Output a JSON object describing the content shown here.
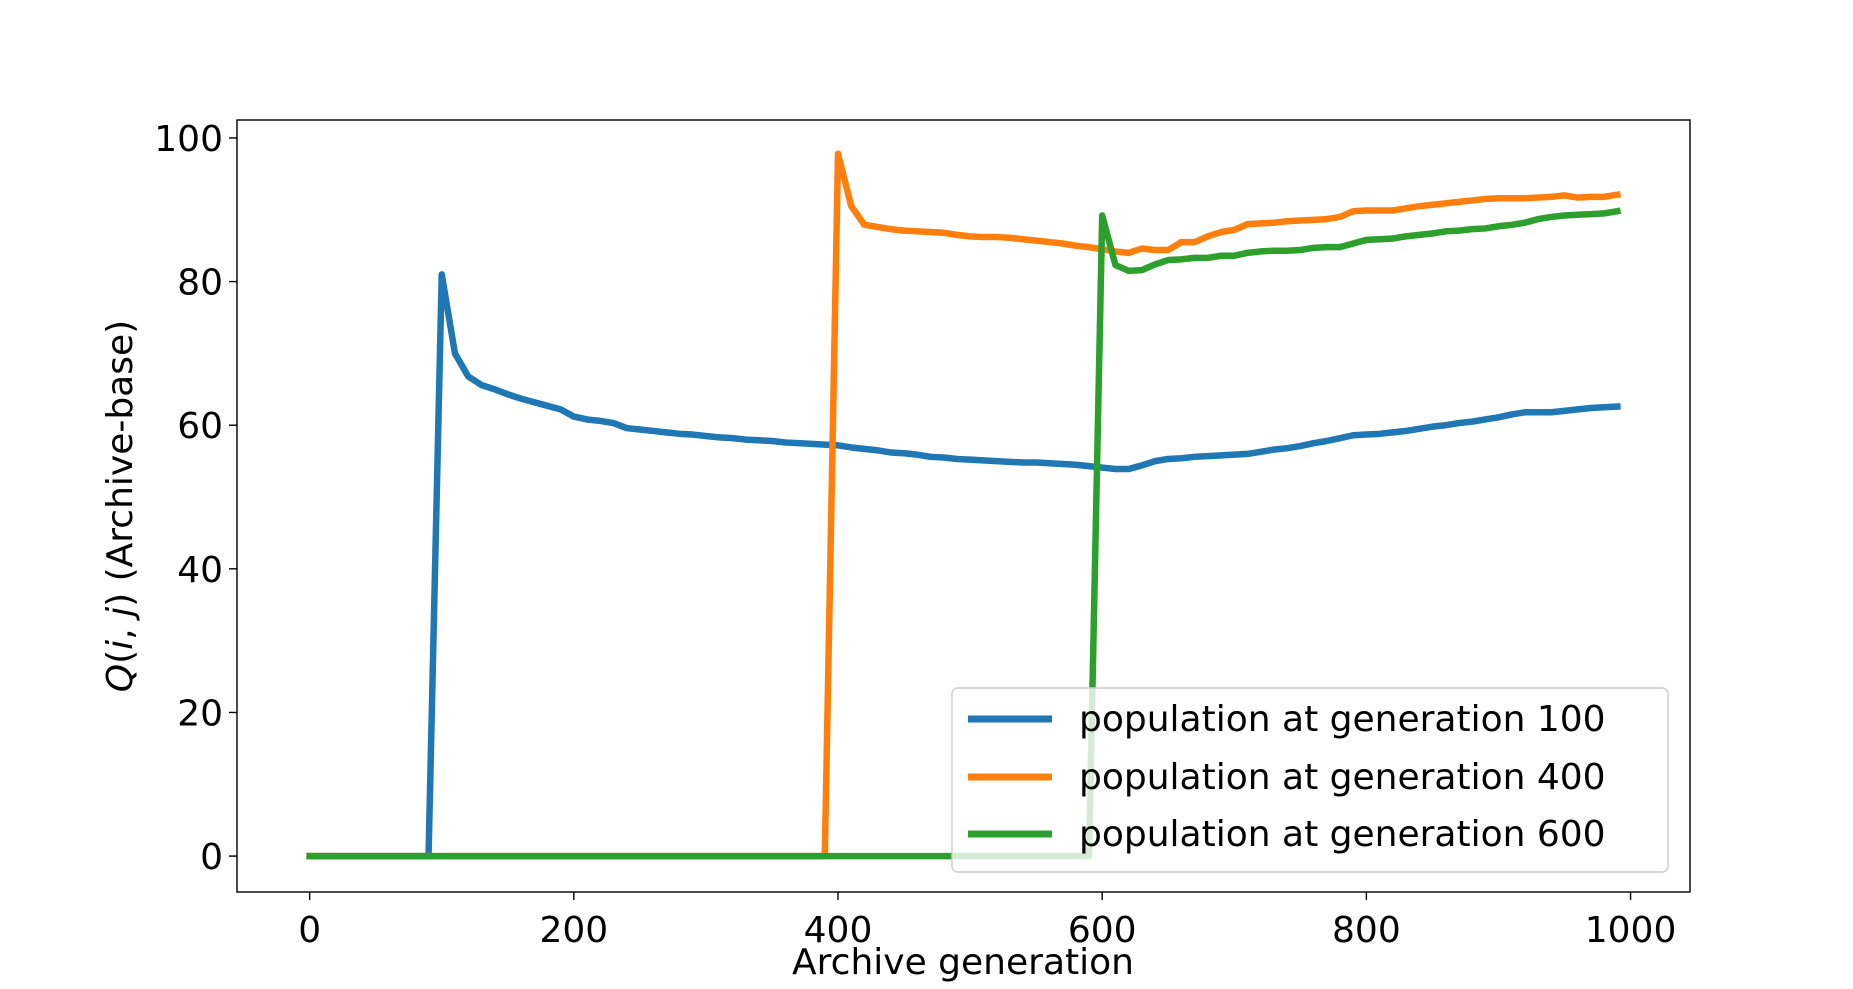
{
  "chart_data": {
    "type": "line",
    "title": "",
    "xlabel": "Archive generation",
    "ylabel": "Q(i, j) (Archive-base)",
    "ylabel_parts": {
      "q": "Q",
      "open": "(",
      "i": "i",
      "comma": ", ",
      "j": "j",
      "close": ")",
      "suffix": " (Archive-base)"
    },
    "xlim": [
      -55,
      1045
    ],
    "ylim": [
      -5,
      102.5
    ],
    "xticks": [
      0,
      200,
      400,
      600,
      800,
      1000
    ],
    "xtick_labels": [
      "0",
      "200",
      "400",
      "600",
      "800",
      "1000"
    ],
    "yticks": [
      0,
      20,
      40,
      60,
      80,
      100
    ],
    "ytick_labels": [
      "0",
      "20",
      "40",
      "60",
      "80",
      "100"
    ],
    "grid": false,
    "legend_position": "lower-right",
    "series": [
      {
        "name": "population at generation 100",
        "label": "population at generation 100",
        "color": "#1f77b4",
        "x": [
          0,
          90,
          100,
          110,
          120,
          130,
          140,
          150,
          160,
          170,
          180,
          190,
          200,
          210,
          220,
          230,
          240,
          250,
          260,
          270,
          280,
          290,
          300,
          310,
          320,
          330,
          340,
          350,
          360,
          370,
          380,
          390,
          400,
          410,
          420,
          430,
          440,
          450,
          460,
          470,
          480,
          490,
          500,
          510,
          520,
          530,
          540,
          550,
          560,
          570,
          580,
          590,
          600,
          610,
          620,
          630,
          640,
          650,
          660,
          670,
          680,
          690,
          700,
          710,
          720,
          730,
          740,
          750,
          760,
          770,
          780,
          790,
          800,
          810,
          820,
          830,
          840,
          850,
          860,
          870,
          880,
          890,
          900,
          910,
          920,
          930,
          940,
          950,
          960,
          970,
          980,
          990
        ],
        "y": [
          0,
          0,
          81,
          70,
          66.8,
          65.6,
          65,
          64.3,
          63.7,
          63.2,
          62.7,
          62.2,
          61.2,
          60.8,
          60.6,
          60.3,
          59.6,
          59.4,
          59.2,
          59,
          58.8,
          58.7,
          58.5,
          58.3,
          58.2,
          58,
          57.9,
          57.8,
          57.6,
          57.5,
          57.4,
          57.3,
          57.2,
          56.9,
          56.7,
          56.5,
          56.2,
          56.1,
          55.9,
          55.6,
          55.5,
          55.3,
          55.2,
          55.1,
          55,
          54.9,
          54.8,
          54.8,
          54.7,
          54.6,
          54.5,
          54.3,
          54.1,
          53.9,
          53.9,
          54.4,
          55,
          55.3,
          55.4,
          55.6,
          55.7,
          55.8,
          55.9,
          56,
          56.3,
          56.6,
          56.8,
          57.1,
          57.5,
          57.8,
          58.2,
          58.6,
          58.7,
          58.8,
          59,
          59.2,
          59.5,
          59.8,
          60,
          60.3,
          60.5,
          60.8,
          61.1,
          61.5,
          61.8,
          61.8,
          61.8,
          62,
          62.2,
          62.4,
          62.5,
          62.6
        ]
      },
      {
        "name": "population at generation 400",
        "label": "population at generation 400",
        "color": "#ff7f0e",
        "x": [
          0,
          390,
          400,
          410,
          420,
          430,
          440,
          450,
          460,
          470,
          480,
          490,
          500,
          510,
          520,
          530,
          540,
          550,
          560,
          570,
          580,
          590,
          600,
          610,
          620,
          630,
          640,
          650,
          660,
          670,
          680,
          690,
          700,
          710,
          720,
          730,
          740,
          750,
          760,
          770,
          780,
          790,
          800,
          810,
          820,
          830,
          840,
          850,
          860,
          870,
          880,
          890,
          900,
          910,
          920,
          930,
          940,
          950,
          960,
          970,
          980,
          990
        ],
        "y": [
          0,
          0,
          97.8,
          90.5,
          87.9,
          87.6,
          87.3,
          87.1,
          87,
          86.9,
          86.8,
          86.5,
          86.3,
          86.2,
          86.2,
          86.1,
          85.9,
          85.7,
          85.5,
          85.3,
          85,
          84.8,
          84.5,
          84.2,
          84,
          84.6,
          84.4,
          84.4,
          85.5,
          85.5,
          86.3,
          86.9,
          87.2,
          88,
          88.1,
          88.2,
          88.4,
          88.5,
          88.6,
          88.7,
          89,
          89.8,
          89.9,
          89.9,
          89.9,
          90.2,
          90.5,
          90.7,
          90.9,
          91.1,
          91.3,
          91.5,
          91.6,
          91.6,
          91.6,
          91.7,
          91.8,
          92,
          91.7,
          91.8,
          91.8,
          92.1
        ]
      },
      {
        "name": "population at generation 600",
        "label": "population at generation 600",
        "color": "#2ca02c",
        "x": [
          0,
          590,
          600,
          610,
          620,
          630,
          640,
          650,
          660,
          670,
          680,
          690,
          700,
          710,
          720,
          730,
          740,
          750,
          760,
          770,
          780,
          790,
          800,
          810,
          820,
          830,
          840,
          850,
          860,
          870,
          880,
          890,
          900,
          910,
          920,
          930,
          940,
          950,
          960,
          970,
          980,
          990
        ],
        "y": [
          0,
          0,
          89.2,
          82.3,
          81.5,
          81.6,
          82.4,
          83,
          83.1,
          83.3,
          83.3,
          83.6,
          83.6,
          84,
          84.2,
          84.3,
          84.3,
          84.4,
          84.7,
          84.8,
          84.8,
          85.3,
          85.8,
          85.9,
          86,
          86.3,
          86.5,
          86.7,
          87,
          87.1,
          87.3,
          87.4,
          87.7,
          87.9,
          88.2,
          88.7,
          89,
          89.2,
          89.3,
          89.4,
          89.5,
          89.8
        ]
      }
    ]
  }
}
